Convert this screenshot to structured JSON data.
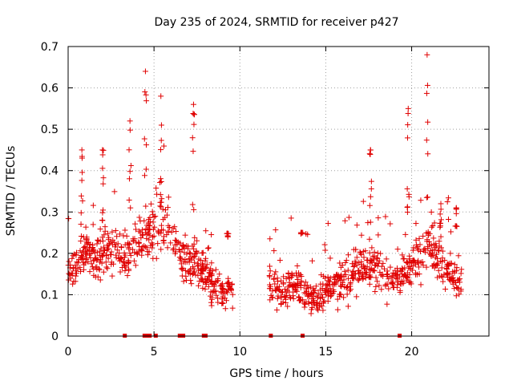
{
  "chart_data": {
    "type": "scatter",
    "title": "Day 235 of 2024, SRMTID for receiver p427",
    "xlabel": "GPS time / hours",
    "ylabel": "SRMTID / TECUs",
    "xlim": [
      0,
      24.5
    ],
    "ylim": [
      0,
      0.7
    ],
    "xticks": [
      0,
      5,
      10,
      15,
      20
    ],
    "xtick_labels": [
      "0",
      "5",
      "10",
      "15",
      "20"
    ],
    "yticks": [
      0,
      0.1,
      0.2,
      0.3,
      0.4,
      0.5,
      0.6,
      0.7
    ],
    "ytick_labels": [
      "0",
      "0.1",
      "0.2",
      "0.3",
      "0.4",
      "0.5",
      "0.6",
      "0.7"
    ],
    "grid": true,
    "marker": "plus",
    "color": "#e00000",
    "series": [
      {
        "name": "SRMTID",
        "segments": [
          {
            "x_start": 0.0,
            "x_end": 9.6,
            "points": 520,
            "envelope": [
              [
                0,
                0.17
              ],
              [
                0.5,
                0.18
              ],
              [
                1,
                0.2
              ],
              [
                1.5,
                0.19
              ],
              [
                2,
                0.2
              ],
              [
                2.5,
                0.21
              ],
              [
                3,
                0.19
              ],
              [
                3.5,
                0.2
              ],
              [
                4,
                0.22
              ],
              [
                4.5,
                0.23
              ],
              [
                5,
                0.26
              ],
              [
                5.5,
                0.27
              ],
              [
                6,
                0.24
              ],
              [
                6.5,
                0.2
              ],
              [
                7,
                0.18
              ],
              [
                7.5,
                0.18
              ],
              [
                8,
                0.15
              ],
              [
                8.5,
                0.12
              ],
              [
                9,
                0.11
              ],
              [
                9.6,
                0.1
              ]
            ],
            "peaks": [
              [
                0.8,
                0.45
              ],
              [
                2.0,
                0.45
              ],
              [
                3.6,
                0.52
              ],
              [
                4.5,
                0.64
              ],
              [
                5.4,
                0.58
              ],
              [
                7.3,
                0.56
              ],
              [
                9.3,
                0.24
              ]
            ]
          },
          {
            "x_start": 11.7,
            "x_end": 22.9,
            "points": 620,
            "envelope": [
              [
                11.7,
                0.13
              ],
              [
                12.5,
                0.11
              ],
              [
                13,
                0.12
              ],
              [
                13.5,
                0.13
              ],
              [
                14,
                0.09
              ],
              [
                14.5,
                0.1
              ],
              [
                15,
                0.11
              ],
              [
                15.5,
                0.12
              ],
              [
                16,
                0.14
              ],
              [
                16.5,
                0.15
              ],
              [
                17,
                0.16
              ],
              [
                17.5,
                0.17
              ],
              [
                18,
                0.17
              ],
              [
                18.5,
                0.15
              ],
              [
                19,
                0.14
              ],
              [
                19.5,
                0.15
              ],
              [
                20,
                0.17
              ],
              [
                20.5,
                0.19
              ],
              [
                21,
                0.21
              ],
              [
                21.5,
                0.19
              ],
              [
                22,
                0.16
              ],
              [
                22.5,
                0.14
              ],
              [
                22.9,
                0.13
              ]
            ],
            "peaks": [
              [
                13.6,
                0.25
              ],
              [
                17.6,
                0.45
              ],
              [
                19.8,
                0.55
              ],
              [
                20.9,
                0.68
              ],
              [
                21.7,
                0.32
              ],
              [
                22.6,
                0.31
              ]
            ]
          }
        ]
      }
    ],
    "rug_x": [
      3.3,
      4.45,
      4.6,
      4.75,
      5.1,
      6.5,
      6.7,
      7.9,
      8.0,
      11.8,
      13.65,
      19.3
    ]
  }
}
